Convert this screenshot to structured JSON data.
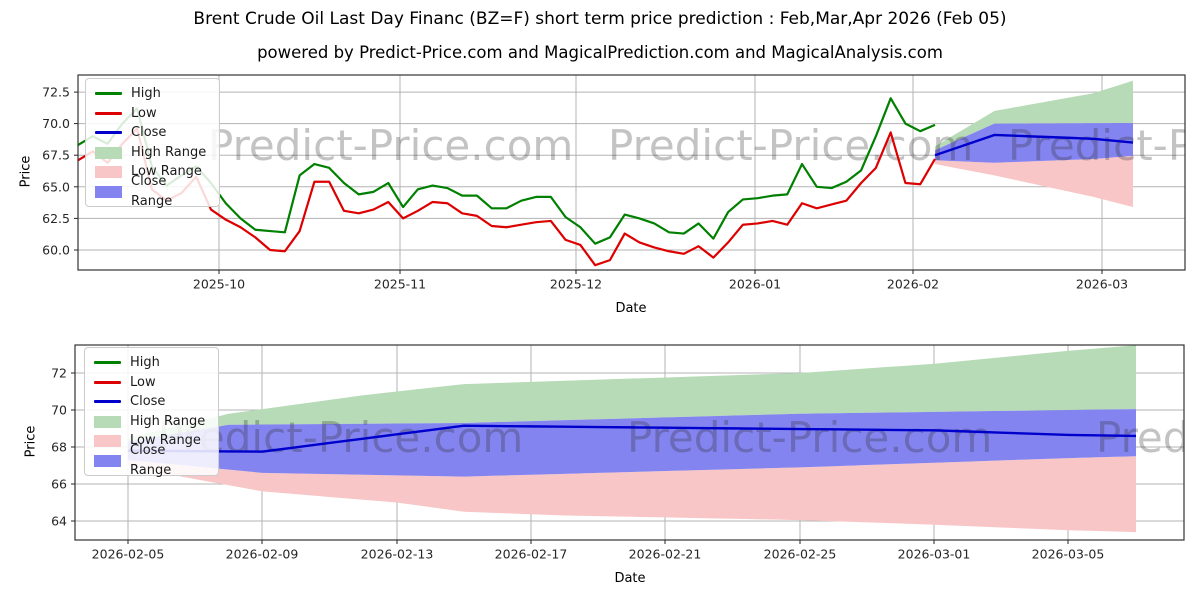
{
  "title": "Brent Crude Oil Last Day Financ (BZ=F) short term price prediction : Feb,Mar,Apr 2026 (Feb 05)",
  "subtitle": "powered by Predict-Price.com and MagicalPrediction.com and MagicalAnalysis.com",
  "watermark": "Predict-Price.com",
  "colors": {
    "high": "#008000",
    "low": "#dd0000",
    "close": "#0000cc",
    "high_range": "#b7dbb7",
    "low_range": "#f8c6c6",
    "close_range": "#8484f0",
    "grid": "#b3b3b3",
    "frame": "#333333",
    "watermark": "#808080"
  },
  "chart_data": [
    {
      "type": "line",
      "title": "historical prices with short-term prediction fan",
      "xlabel": "Date",
      "ylabel": "Price",
      "xtick_labels": [
        "2025-10",
        "2025-11",
        "2025-12",
        "2026-01",
        "2026-02",
        "2026-03"
      ],
      "ytick_labels": [
        "60.0",
        "62.5",
        "65.0",
        "67.5",
        "70.0",
        "72.5"
      ],
      "ylim": [
        58.4,
        73.9
      ],
      "x_span": "2025-09-22 to 2026-03-07",
      "legend": [
        "High",
        "Low",
        "Close",
        "High Range",
        "Low Range",
        "Close Range"
      ],
      "series": [
        {
          "name": "High",
          "role": "high",
          "values": [
            68.3,
            69.0,
            68.4,
            70.0,
            71.2,
            66.6,
            65.1,
            65.9,
            66.6,
            65.3,
            63.7,
            62.5,
            61.6,
            61.5,
            61.4,
            65.9,
            66.8,
            66.5,
            65.3,
            64.4,
            64.6,
            65.3,
            63.4,
            64.8,
            65.1,
            64.9,
            64.3,
            64.3,
            63.3,
            63.3,
            63.9,
            64.2,
            64.2,
            62.6,
            61.8,
            60.5,
            61.0,
            62.8,
            62.5,
            62.1,
            61.4,
            61.3,
            62.1,
            60.9,
            63.0,
            64.0,
            64.1,
            64.3,
            64.4,
            66.8,
            65.0,
            64.9,
            65.4,
            66.3,
            69.0,
            72.0,
            70.0,
            69.4,
            69.9
          ]
        },
        {
          "name": "Low",
          "role": "low",
          "values": [
            67.1,
            67.8,
            66.9,
            68.4,
            69.6,
            64.8,
            63.9,
            64.5,
            65.8,
            63.2,
            62.4,
            61.8,
            61.0,
            60.0,
            59.9,
            61.5,
            65.4,
            65.4,
            63.1,
            62.9,
            63.2,
            63.8,
            62.5,
            63.1,
            63.8,
            63.7,
            62.9,
            62.7,
            61.9,
            61.8,
            62.0,
            62.2,
            62.3,
            60.8,
            60.4,
            58.8,
            59.2,
            61.3,
            60.6,
            60.2,
            59.9,
            59.7,
            60.3,
            59.4,
            60.6,
            62.0,
            62.1,
            62.3,
            62.0,
            63.7,
            63.3,
            63.6,
            63.9,
            65.3,
            66.5,
            69.3,
            65.3,
            65.2,
            67.2
          ]
        },
        {
          "name": "Close",
          "role": "close",
          "keypoints": [
            [
              0,
              67.5
            ],
            [
              9,
              69.1
            ],
            [
              24,
              68.8
            ],
            [
              30,
              68.5
            ]
          ]
        }
      ],
      "bands": [
        {
          "name": "High Range",
          "role": "high_range",
          "upper": [
            [
              0,
              68.2
            ],
            [
              9,
              71.0
            ],
            [
              24,
              72.4
            ],
            [
              30,
              73.4
            ]
          ],
          "lower": [
            [
              0,
              67.9
            ],
            [
              9,
              70.0
            ],
            [
              30,
              70.05
            ]
          ]
        },
        {
          "name": "Low Range",
          "role": "low_range",
          "upper": [
            [
              0,
              67.1
            ],
            [
              9,
              66.9
            ],
            [
              24,
              67.2
            ],
            [
              30,
              67.45
            ]
          ],
          "lower": [
            [
              0,
              66.8
            ],
            [
              9,
              65.9
            ],
            [
              24,
              64.2
            ],
            [
              30,
              63.4
            ]
          ]
        },
        {
          "name": "Close Range",
          "role": "close_range",
          "upper": [
            [
              0,
              67.9
            ],
            [
              9,
              70.0
            ],
            [
              30,
              70.05
            ]
          ],
          "lower": [
            [
              0,
              67.1
            ],
            [
              9,
              66.9
            ],
            [
              24,
              67.2
            ],
            [
              30,
              67.45
            ]
          ]
        }
      ]
    },
    {
      "type": "line",
      "title": "prediction detail Feb 05 - Mar 07 2026",
      "xlabel": "Date",
      "ylabel": "Price",
      "xtick_labels": [
        "2026-02-05",
        "2026-02-09",
        "2026-02-13",
        "2026-02-17",
        "2026-02-21",
        "2026-02-25",
        "2026-03-01",
        "2026-03-05"
      ],
      "ytick_labels": [
        "64",
        "66",
        "68",
        "70",
        "72"
      ],
      "ylim": [
        62.9,
        73.5
      ],
      "x_span": "2026-02-05 to 2026-03-07",
      "legend": [
        "High",
        "Low",
        "Close",
        "High Range",
        "Low Range",
        "Close Range"
      ],
      "series": [
        {
          "name": "Close",
          "role": "close",
          "keypoints": [
            [
              0,
              67.8
            ],
            [
              4,
              67.75
            ],
            [
              10,
              69.15
            ],
            [
              24,
              68.9
            ],
            [
              28,
              68.65
            ],
            [
              30,
              68.6
            ]
          ]
        }
      ],
      "bands": [
        {
          "name": "High Range",
          "role": "high_range",
          "upper": [
            [
              0,
              68.5
            ],
            [
              3,
              69.8
            ],
            [
              7,
              70.8
            ],
            [
              10,
              71.4
            ],
            [
              20,
              72.0
            ],
            [
              24,
              72.5
            ],
            [
              28,
              73.2
            ],
            [
              30,
              73.5
            ]
          ],
          "lower": [
            [
              0,
              68.3
            ],
            [
              3,
              69.2
            ],
            [
              10,
              69.3
            ],
            [
              20,
              69.8
            ],
            [
              30,
              70.05
            ]
          ]
        },
        {
          "name": "Low Range",
          "role": "low_range",
          "upper": [
            [
              0,
              67.3
            ],
            [
              4,
              66.6
            ],
            [
              10,
              66.4
            ],
            [
              20,
              66.9
            ],
            [
              28,
              67.4
            ],
            [
              30,
              67.5
            ]
          ],
          "lower": [
            [
              0,
              67.0
            ],
            [
              1,
              66.6
            ],
            [
              4,
              65.6
            ],
            [
              8,
              65.0
            ],
            [
              10,
              64.5
            ],
            [
              13,
              64.3
            ],
            [
              20,
              64.05
            ],
            [
              24,
              63.8
            ],
            [
              28,
              63.5
            ],
            [
              30,
              63.4
            ]
          ]
        },
        {
          "name": "Close Range",
          "role": "close_range",
          "upper": [
            [
              0,
              68.3
            ],
            [
              3,
              69.2
            ],
            [
              10,
              69.3
            ],
            [
              20,
              69.8
            ],
            [
              30,
              70.05
            ]
          ],
          "lower": [
            [
              0,
              67.3
            ],
            [
              4,
              66.6
            ],
            [
              10,
              66.4
            ],
            [
              20,
              66.9
            ],
            [
              28,
              67.4
            ],
            [
              30,
              67.5
            ]
          ]
        }
      ]
    }
  ]
}
